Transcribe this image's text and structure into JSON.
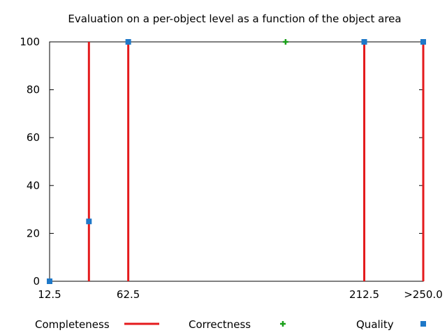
{
  "chart_data": {
    "type": "scatter",
    "title": "Evaluation on a per-object level as a function of the object area",
    "xlabel": "",
    "ylabel": "",
    "xlim": [
      12.5,
      250.0
    ],
    "ylim": [
      0,
      100
    ],
    "grid": false,
    "x_ticks": [
      {
        "value": 12.5,
        "label": "12.5"
      },
      {
        "value": 62.5,
        "label": "62.5"
      },
      {
        "value": 212.5,
        "label": "212.5"
      },
      {
        "value": 250.0,
        "label": ">250.0"
      }
    ],
    "y_ticks": [
      0,
      20,
      40,
      60,
      80,
      100
    ],
    "legend_position": "bottom",
    "series": [
      {
        "name": "Completeness",
        "style": "impulses",
        "color": "#e41a1c",
        "points": [
          [
            37.5,
            100
          ],
          [
            62.5,
            100
          ],
          [
            212.5,
            100
          ],
          [
            250.0,
            100
          ]
        ]
      },
      {
        "name": "Correctness",
        "style": "plus",
        "color": "#1aa01a",
        "points": [
          [
            162.5,
            100
          ]
        ]
      },
      {
        "name": "Quality",
        "style": "square",
        "color": "#1e78c8",
        "points": [
          [
            12.5,
            0
          ],
          [
            37.5,
            25
          ],
          [
            62.5,
            100
          ],
          [
            212.5,
            100
          ],
          [
            250.0,
            100
          ]
        ]
      }
    ]
  }
}
